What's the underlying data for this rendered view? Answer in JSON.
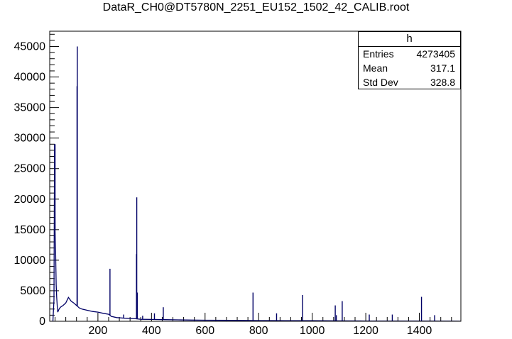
{
  "title": "DataR_CH0@DT5780N_2251_EU152_1502_42_CALIB.root",
  "stats": {
    "name": "h",
    "rows": [
      {
        "label": "Entries",
        "value": "4273405"
      },
      {
        "label": "Mean",
        "value": "317.1"
      },
      {
        "label": "Std Dev",
        "value": "328.8"
      }
    ]
  },
  "colors": {
    "line": "#000066",
    "axis": "#000000"
  },
  "chart_data": {
    "type": "line",
    "title": "DataR_CH0@DT5780N_2251_EU152_1502_42_CALIB.root",
    "xlabel": "",
    "ylabel": "",
    "xlim": [
      20,
      1555
    ],
    "ylim": [
      0,
      47500
    ],
    "x_ticks": [
      200,
      400,
      600,
      800,
      1000,
      1200,
      1400
    ],
    "y_ticks": [
      0,
      5000,
      10000,
      15000,
      20000,
      25000,
      30000,
      35000,
      40000,
      45000
    ],
    "grid": false,
    "histogram_name": "h",
    "continuum": [
      [
        32,
        0
      ],
      [
        36,
        3500
      ],
      [
        38,
        29000
      ],
      [
        40,
        15000
      ],
      [
        42,
        11500
      ],
      [
        44,
        6000
      ],
      [
        46,
        4000
      ],
      [
        48,
        2500
      ],
      [
        50,
        1500
      ],
      [
        55,
        2000
      ],
      [
        60,
        2300
      ],
      [
        70,
        2600
      ],
      [
        80,
        3000
      ],
      [
        90,
        3900
      ],
      [
        100,
        3300
      ],
      [
        110,
        3000
      ],
      [
        120,
        2600
      ],
      [
        125,
        2400
      ],
      [
        130,
        2200
      ],
      [
        140,
        2000
      ],
      [
        160,
        1800
      ],
      [
        180,
        1600
      ],
      [
        200,
        1500
      ],
      [
        220,
        1300
      ],
      [
        240,
        1150
      ],
      [
        250,
        800
      ],
      [
        270,
        600
      ],
      [
        300,
        500
      ],
      [
        340,
        420
      ],
      [
        360,
        330
      ],
      [
        400,
        300
      ],
      [
        450,
        270
      ],
      [
        500,
        230
      ],
      [
        550,
        200
      ],
      [
        600,
        170
      ],
      [
        700,
        150
      ],
      [
        800,
        120
      ],
      [
        900,
        110
      ],
      [
        1000,
        90
      ],
      [
        1100,
        70
      ],
      [
        1200,
        50
      ],
      [
        1300,
        40
      ],
      [
        1400,
        30
      ],
      [
        1500,
        20
      ],
      [
        1555,
        15
      ]
    ],
    "peaks": [
      {
        "x": 40,
        "y": 29000
      },
      {
        "x": 42,
        "y": 11500
      },
      {
        "x": 122,
        "y": 38500
      },
      {
        "x": 123,
        "y": 45000
      },
      {
        "x": 245,
        "y": 8600
      },
      {
        "x": 296,
        "y": 1100
      },
      {
        "x": 344,
        "y": 11000
      },
      {
        "x": 345,
        "y": 20300
      },
      {
        "x": 347,
        "y": 4700
      },
      {
        "x": 367,
        "y": 900
      },
      {
        "x": 411,
        "y": 1300
      },
      {
        "x": 444,
        "y": 2300
      },
      {
        "x": 779,
        "y": 4700
      },
      {
        "x": 867,
        "y": 1300
      },
      {
        "x": 964,
        "y": 4300
      },
      {
        "x": 1086,
        "y": 2600
      },
      {
        "x": 1090,
        "y": 1000
      },
      {
        "x": 1112,
        "y": 3300
      },
      {
        "x": 1213,
        "y": 1100
      },
      {
        "x": 1299,
        "y": 1100
      },
      {
        "x": 1408,
        "y": 4000
      },
      {
        "x": 1457,
        "y": 1000
      }
    ]
  }
}
